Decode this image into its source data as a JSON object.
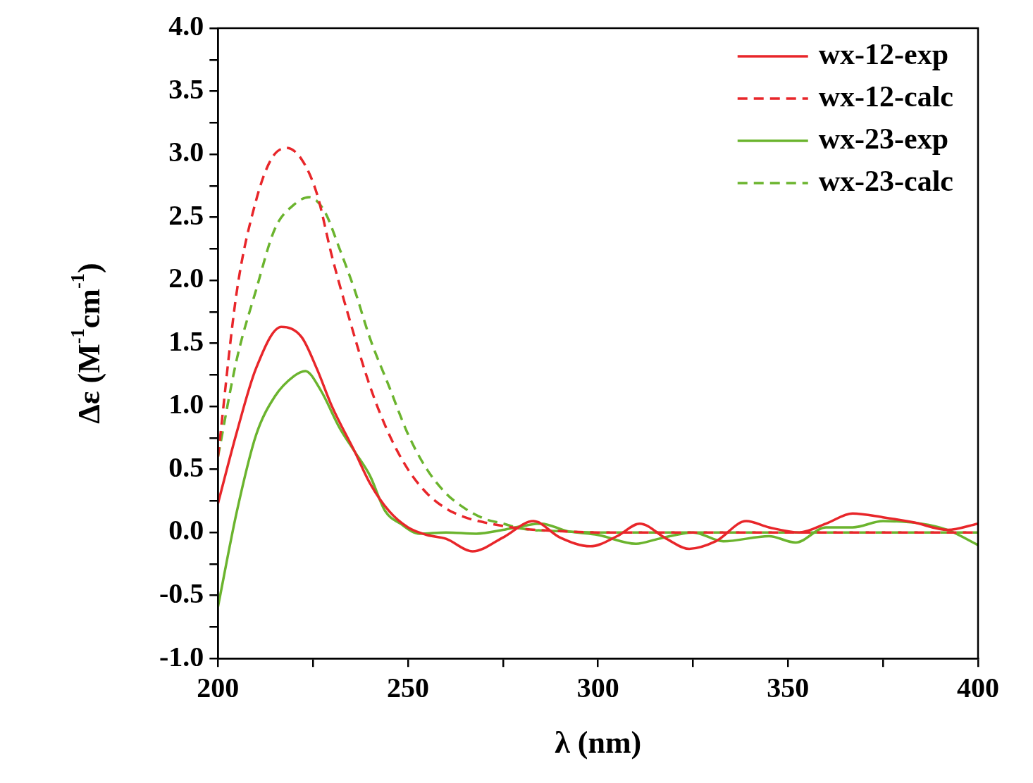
{
  "chart_data": {
    "type": "line",
    "xlabel": "λ (nm)",
    "ylabel": "Δε (M$^{-1}$cm$^{-1}$)",
    "xlim": [
      200,
      400
    ],
    "ylim": [
      -1.0,
      4.0
    ],
    "xticks": [
      200,
      {
        "value": 225,
        "label": null
      },
      250,
      {
        "value": 275,
        "label": null
      },
      300,
      {
        "value": 325,
        "label": null
      },
      350,
      {
        "value": 375,
        "label": null
      },
      400
    ],
    "yticks": [
      {
        "value": -1.0,
        "label": "-1.0"
      },
      {
        "value": -0.75,
        "label": null
      },
      {
        "value": -0.5,
        "label": "-0.5"
      },
      {
        "value": -0.25,
        "label": null
      },
      {
        "value": 0,
        "label": "0.0"
      },
      {
        "value": 0.25,
        "label": null
      },
      {
        "value": 0.5,
        "label": "0.5"
      },
      {
        "value": 0.75,
        "label": null
      },
      {
        "value": 1.0,
        "label": "1.0"
      },
      {
        "value": 1.25,
        "label": null
      },
      {
        "value": 1.5,
        "label": "1.5"
      },
      {
        "value": 1.75,
        "label": null
      },
      {
        "value": 2.0,
        "label": "2.0"
      },
      {
        "value": 2.25,
        "label": null
      },
      {
        "value": 2.5,
        "label": "2.5"
      },
      {
        "value": 2.75,
        "label": null
      },
      {
        "value": 3.0,
        "label": "3.0"
      },
      {
        "value": 3.25,
        "label": null
      },
      {
        "value": 3.5,
        "label": "3.5"
      },
      {
        "value": 3.75,
        "label": null
      },
      {
        "value": 4.0,
        "label": "4.0"
      }
    ],
    "grid": false,
    "legend": "top right",
    "marker": "none",
    "series": [
      {
        "name": "wx-12-exp",
        "color": "#e8262a",
        "line_style": "solid",
        "x": [
          200,
          205,
          210,
          216.7,
          222,
          226,
          230,
          236,
          240,
          245,
          250,
          255,
          260,
          267,
          275,
          283,
          290,
          298,
          305,
          311,
          318,
          324,
          331,
          339,
          345,
          353,
          360,
          367,
          375,
          383,
          392,
          400
        ],
        "values": [
          0.23,
          0.8,
          1.3,
          1.63,
          1.55,
          1.3,
          1.0,
          0.64,
          0.39,
          0.17,
          0.04,
          -0.02,
          -0.05,
          -0.15,
          -0.04,
          0.09,
          -0.04,
          -0.11,
          -0.03,
          0.07,
          -0.05,
          -0.13,
          -0.07,
          0.09,
          0.04,
          0.0,
          0.07,
          0.15,
          0.12,
          0.08,
          0.02,
          0.07
        ]
      },
      {
        "name": "wx-12-calc",
        "color": "#e8262a",
        "line_style": "dashed",
        "x": [
          200,
          205,
          210,
          214,
          218,
          222,
          226,
          230,
          235,
          240,
          245,
          250,
          255,
          260,
          265,
          270,
          280,
          290,
          300,
          350,
          400
        ],
        "values": [
          0.6,
          1.92,
          2.63,
          2.96,
          3.05,
          2.96,
          2.69,
          2.19,
          1.65,
          1.16,
          0.78,
          0.5,
          0.31,
          0.19,
          0.12,
          0.08,
          0.03,
          0.01,
          0.0,
          0.0,
          0.0
        ]
      },
      {
        "name": "wx-23-exp",
        "color": "#6bb42e",
        "line_style": "solid",
        "x": [
          200,
          205,
          210,
          215,
          220,
          223,
          227,
          232,
          236,
          240,
          244,
          248,
          253,
          260,
          268,
          275,
          280,
          285,
          292,
          300,
          310,
          316,
          325,
          333,
          345,
          352,
          360,
          367,
          375,
          385,
          392,
          400
        ],
        "values": [
          -0.59,
          0.17,
          0.77,
          1.08,
          1.24,
          1.28,
          1.13,
          0.83,
          0.64,
          0.45,
          0.17,
          0.07,
          -0.01,
          0.0,
          -0.01,
          0.02,
          0.05,
          0.07,
          0.01,
          -0.02,
          -0.09,
          -0.05,
          0.0,
          -0.07,
          -0.03,
          -0.08,
          0.04,
          0.04,
          0.09,
          0.07,
          0.02,
          -0.1
        ]
      },
      {
        "name": "wx-23-calc",
        "color": "#6bb42e",
        "line_style": "dashed",
        "x": [
          200,
          205,
          210,
          215,
          220,
          224,
          228,
          232,
          236,
          240,
          245,
          250,
          255,
          260,
          265,
          270,
          275,
          280,
          290,
          300,
          350,
          400
        ],
        "values": [
          0.6,
          1.38,
          1.92,
          2.41,
          2.6,
          2.66,
          2.55,
          2.25,
          1.92,
          1.54,
          1.16,
          0.78,
          0.5,
          0.31,
          0.19,
          0.11,
          0.07,
          0.03,
          0.01,
          0.0,
          0.0,
          0.0
        ]
      }
    ]
  }
}
